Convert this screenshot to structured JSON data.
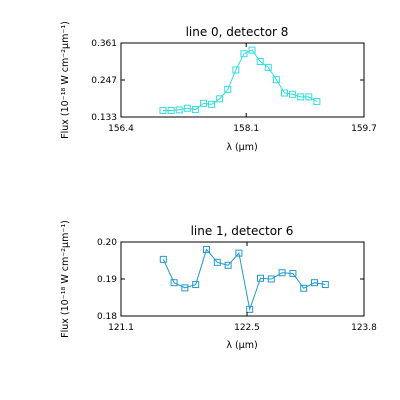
{
  "chart_data": [
    {
      "type": "line",
      "title": "line 0, detector 8",
      "xlabel": "λ (μm)",
      "ylabel": "Flux (10⁻¹⁸ W cm⁻²μm⁻¹)",
      "xlim": [
        156.4,
        159.7
      ],
      "ylim": [
        0.133,
        0.361
      ],
      "xticks": [
        "156.4",
        "158.1",
        "159.7"
      ],
      "yticks": [
        "0.133",
        "0.247",
        "0.361"
      ],
      "color": "#33dddd",
      "marker": "square",
      "grid": false,
      "series": [
        {
          "x": [
            156.97,
            157.08,
            157.19,
            157.3,
            157.41,
            157.52,
            157.63,
            157.74,
            157.85,
            157.96,
            158.07,
            158.18,
            158.29,
            158.4,
            158.51,
            158.62,
            158.73,
            158.84,
            158.95,
            159.06
          ],
          "y": [
            0.153,
            0.153,
            0.155,
            0.16,
            0.156,
            0.175,
            0.172,
            0.189,
            0.218,
            0.278,
            0.328,
            0.339,
            0.304,
            0.286,
            0.248,
            0.207,
            0.203,
            0.195,
            0.195,
            0.181
          ]
        }
      ]
    },
    {
      "type": "line",
      "title": "line 1, detector 6",
      "xlabel": "λ (μm)",
      "ylabel": "Flux (10⁻¹⁸ W cm⁻²μm⁻¹)",
      "xlim": [
        121.1,
        123.8
      ],
      "ylim": [
        0.18,
        0.2
      ],
      "xticks": [
        "121.1",
        "122.5",
        "123.8"
      ],
      "yticks": [
        "0.18",
        "0.19",
        "0.20"
      ],
      "color": "#2299cc",
      "marker": "square",
      "grid": false,
      "series": [
        {
          "x": [
            121.57,
            121.69,
            121.81,
            121.93,
            122.05,
            122.17,
            122.29,
            122.41,
            122.53,
            122.65,
            122.77,
            122.89,
            123.01,
            123.13,
            123.25,
            123.37
          ],
          "y": [
            0.1953,
            0.189,
            0.1876,
            0.1885,
            0.198,
            0.1945,
            0.1937,
            0.197,
            0.1818,
            0.1902,
            0.19,
            0.1917,
            0.1915,
            0.1875,
            0.189,
            0.1885
          ]
        }
      ]
    }
  ]
}
